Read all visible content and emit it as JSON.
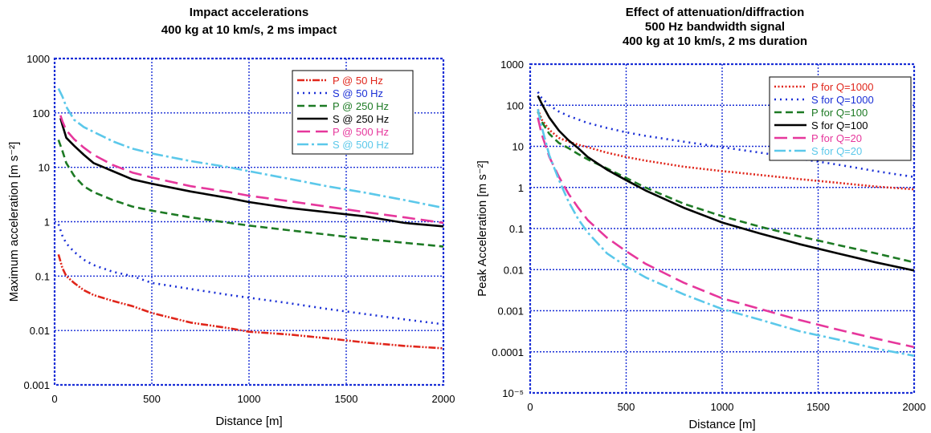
{
  "chart_data": [
    {
      "type": "line",
      "title_lines": [
        "Impact accelerations",
        "400 kg at 10 km/s, 2 ms impact"
      ],
      "xlabel": "Distance [m]",
      "ylabel": "Maximum acceleration [m s⁻²]",
      "xlim": [
        0,
        2000
      ],
      "ylim": [
        0.001,
        1000
      ],
      "yscale": "log",
      "grid": true,
      "grid_color": "#1a2fd6",
      "legend_position": "top-right",
      "x_ticks": [
        0,
        500,
        1000,
        1500,
        2000
      ],
      "x_tick_labels": [
        "0",
        "500",
        "1000",
        "1500",
        "2000"
      ],
      "y_ticks": [
        0.001,
        0.01,
        0.1,
        1,
        10,
        100,
        1000
      ],
      "y_tick_labels": [
        "0.001",
        "0.01",
        "0.1",
        "1",
        "10",
        "100",
        "1000"
      ],
      "series": [
        {
          "name": "P @ 50 Hz",
          "color": "#e0261b",
          "dash": "dotted-dash",
          "x": [
            20,
            40,
            60,
            100,
            150,
            200,
            300,
            400,
            500,
            700,
            900,
            1000,
            1200,
            1400,
            1600,
            1800,
            2000
          ],
          "y": [
            0.25,
            0.14,
            0.1,
            0.075,
            0.055,
            0.045,
            0.035,
            0.028,
            0.021,
            0.014,
            0.011,
            0.0095,
            0.0085,
            0.0072,
            0.006,
            0.0052,
            0.0047
          ]
        },
        {
          "name": "S @ 50 Hz",
          "color": "#1a2fd6",
          "dash": "dotted",
          "x": [
            20,
            40,
            60,
            100,
            150,
            200,
            300,
            400,
            500,
            700,
            900,
            1000,
            1200,
            1400,
            1600,
            1800,
            2000
          ],
          "y": [
            0.9,
            0.55,
            0.4,
            0.28,
            0.2,
            0.16,
            0.12,
            0.1,
            0.075,
            0.058,
            0.045,
            0.04,
            0.032,
            0.025,
            0.02,
            0.016,
            0.013
          ]
        },
        {
          "name": "P @ 250 Hz",
          "color": "#1d7a24",
          "dash": "dashed",
          "x": [
            20,
            40,
            60,
            100,
            150,
            200,
            300,
            400,
            500,
            700,
            900,
            1000,
            1200,
            1400,
            1600,
            1800,
            2000
          ],
          "y": [
            32,
            20,
            12,
            7,
            4.5,
            3.5,
            2.5,
            1.9,
            1.6,
            1.2,
            0.95,
            0.85,
            0.7,
            0.58,
            0.48,
            0.41,
            0.35
          ]
        },
        {
          "name": "S @ 250 Hz",
          "color": "#000000",
          "dash": "solid",
          "x": [
            30,
            40,
            60,
            100,
            150,
            200,
            300,
            400,
            500,
            700,
            900,
            1000,
            1200,
            1400,
            1600,
            1800,
            2000
          ],
          "y": [
            80,
            60,
            35,
            25,
            17,
            12,
            8.5,
            6,
            5,
            3.6,
            2.7,
            2.3,
            1.8,
            1.5,
            1.25,
            0.95,
            0.82
          ]
        },
        {
          "name": "P @ 500 Hz",
          "color": "#e6379c",
          "dash": "long-dash",
          "x": [
            30,
            40,
            60,
            100,
            150,
            200,
            300,
            400,
            500,
            700,
            900,
            1000,
            1200,
            1400,
            1600,
            1800,
            2000
          ],
          "y": [
            90,
            70,
            48,
            33,
            23,
            17,
            11,
            8,
            6.5,
            4.5,
            3.5,
            3,
            2.4,
            1.9,
            1.5,
            1.2,
            0.95
          ]
        },
        {
          "name": "S @ 500 Hz",
          "color": "#5bc8ea",
          "dash": "dash-dot",
          "x": [
            20,
            40,
            60,
            100,
            150,
            200,
            300,
            400,
            500,
            700,
            900,
            1000,
            1200,
            1400,
            1600,
            1800,
            2000
          ],
          "y": [
            280,
            200,
            130,
            75,
            55,
            45,
            30,
            22,
            18,
            13,
            10,
            8.5,
            6.2,
            4.5,
            3.4,
            2.5,
            1.8
          ]
        }
      ]
    },
    {
      "type": "line",
      "title_lines": [
        "Effect of attenuation/diffraction",
        "500 Hz bandwidth signal",
        "400 kg at 10 km/s, 2 ms duration"
      ],
      "xlabel": "Distance [m]",
      "ylabel": "Peak Acceleration [m s⁻²]",
      "xlim": [
        0,
        2000
      ],
      "ylim": [
        1e-05,
        1000
      ],
      "yscale": "log",
      "grid": true,
      "grid_color": "#1a2fd6",
      "legend_position": "top-right",
      "x_ticks": [
        0,
        500,
        1000,
        1500,
        2000
      ],
      "x_tick_labels": [
        "0",
        "500",
        "1000",
        "1500",
        "2000"
      ],
      "y_ticks": [
        1e-05,
        0.0001,
        0.001,
        0.01,
        0.1,
        1,
        10,
        100,
        1000
      ],
      "y_tick_labels": [
        "10⁻⁵",
        "0.0001",
        "0.001",
        "0.01",
        "0.1",
        "1",
        "10",
        "100",
        "1000"
      ],
      "series": [
        {
          "name": "P for Q=1000",
          "color": "#e0261b",
          "dash": "dotted-dense",
          "x": [
            40,
            60,
            100,
            150,
            200,
            250,
            300,
            400,
            500,
            600,
            800,
            1000,
            1200,
            1400,
            1600,
            1800,
            2000
          ],
          "y": [
            80,
            45,
            25,
            16,
            13,
            11,
            9.5,
            7,
            5.5,
            4.5,
            3.2,
            2.5,
            2.0,
            1.6,
            1.3,
            1.05,
            0.9
          ]
        },
        {
          "name": "S for Q=1000",
          "color": "#1a2fd6",
          "dash": "dotted",
          "x": [
            40,
            60,
            100,
            150,
            200,
            250,
            300,
            400,
            500,
            600,
            800,
            1000,
            1200,
            1400,
            1600,
            1800,
            2000
          ],
          "y": [
            210,
            150,
            100,
            70,
            55,
            45,
            37,
            28,
            22,
            18,
            13,
            9.5,
            7,
            5,
            3.6,
            2.5,
            1.8
          ]
        },
        {
          "name": "P for Q=100",
          "color": "#1d7a24",
          "dash": "dashed",
          "x": [
            40,
            60,
            100,
            150,
            200,
            250,
            300,
            400,
            500,
            600,
            800,
            1000,
            1200,
            1400,
            1600,
            1800,
            2000
          ],
          "y": [
            70,
            40,
            20,
            12,
            9,
            6.5,
            4.8,
            2.9,
            1.7,
            1.0,
            0.4,
            0.2,
            0.11,
            0.065,
            0.04,
            0.025,
            0.015
          ]
        },
        {
          "name": "S for Q=100",
          "color": "#000000",
          "dash": "solid",
          "x": [
            40,
            60,
            100,
            150,
            200,
            250,
            300,
            400,
            500,
            600,
            800,
            1000,
            1200,
            1400,
            1600,
            1800,
            2000
          ],
          "y": [
            170,
            110,
            50,
            24,
            14,
            9,
            5.5,
            2.7,
            1.5,
            0.85,
            0.32,
            0.14,
            0.075,
            0.042,
            0.025,
            0.015,
            0.0095
          ]
        },
        {
          "name": "P for Q=20",
          "color": "#e6379c",
          "dash": "long-dash",
          "x": [
            40,
            60,
            100,
            150,
            200,
            250,
            300,
            400,
            500,
            600,
            800,
            1000,
            1200,
            1400,
            1600,
            1800,
            2000
          ],
          "y": [
            50,
            20,
            5.5,
            1.8,
            0.7,
            0.32,
            0.16,
            0.06,
            0.028,
            0.014,
            0.0048,
            0.002,
            0.0011,
            0.0006,
            0.00035,
            0.00021,
            0.00013
          ]
        },
        {
          "name": "S for Q=20",
          "color": "#5bc8ea",
          "dash": "dash-dot",
          "x": [
            40,
            60,
            100,
            150,
            200,
            250,
            300,
            400,
            500,
            600,
            800,
            1000,
            1200,
            1400,
            1600,
            1800,
            2000
          ],
          "y": [
            80,
            30,
            6,
            1.5,
            0.45,
            0.17,
            0.08,
            0.025,
            0.012,
            0.0065,
            0.0025,
            0.0011,
            0.0006,
            0.00032,
            0.0002,
            0.00012,
            8e-05
          ]
        }
      ]
    }
  ]
}
